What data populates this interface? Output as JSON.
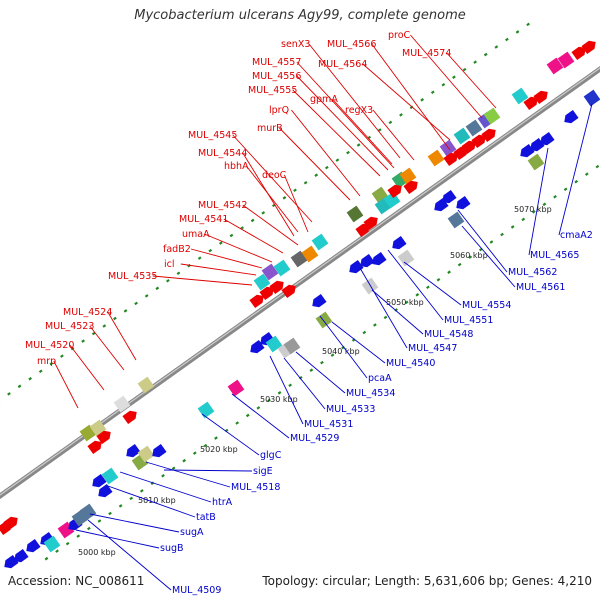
{
  "title": "Mycobacterium ulcerans Agy99, complete genome",
  "footer": {
    "accession": "Accession: NC_008611",
    "topology": "Topology: circular; Length: 5,631,606 bp; Genes: 4,210"
  },
  "colors": {
    "forward_label": "#dd0000",
    "reverse_label": "#0000cc",
    "forward_arrow": "#ee0000",
    "reverse_arrow": "#1111dd",
    "backbone": "#888888",
    "tick": "#228822"
  },
  "kbp_ticks": [
    "5000 kbp",
    "5010 kbp",
    "5020 kbp",
    "5030 kbp",
    "5040 kbp",
    "5050 kbp",
    "5060 kbp",
    "5070 kbp"
  ],
  "forward_genes": [
    "mrp",
    "MUL_4520",
    "MUL_4523",
    "MUL_4524",
    "MUL_4535",
    "icl",
    "fadB2",
    "umaA",
    "MUL_4541",
    "MUL_4542",
    "deoC",
    "hbhA",
    "MUL_4544",
    "MUL_4545",
    "murB",
    "lprQ",
    "MUL_4555",
    "MUL_4556",
    "MUL_4557",
    "senX3",
    "gpmA",
    "MUL_4564",
    "regX3",
    "MUL_4566",
    "proC",
    "MUL_4574"
  ],
  "reverse_genes": [
    "MUL_4509",
    "sugB",
    "sugA",
    "tatB",
    "htrA",
    "MUL_4518",
    "sigE",
    "glgC",
    "MUL_4529",
    "MUL_4531",
    "MUL_4533",
    "MUL_4534",
    "pcaA",
    "MUL_4540",
    "MUL_4547",
    "MUL_4548",
    "MUL_4551",
    "MUL_4554",
    "MUL_4561",
    "MUL_4562",
    "MUL_4565",
    "cmaA2"
  ]
}
